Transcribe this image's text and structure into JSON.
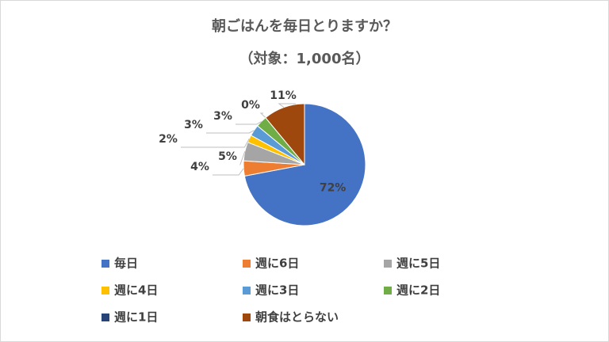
{
  "chart_data": {
    "type": "pie",
    "title": "朝ごはんを毎日とりますか？",
    "subtitle": "（対象：1,000名）",
    "categories": [
      "毎日",
      "週に6日",
      "週に5日",
      "週に4日",
      "週に3日",
      "週に2日",
      "週に1日",
      "朝食はとらない"
    ],
    "values": [
      72,
      4,
      5,
      2,
      3,
      3,
      0,
      11
    ],
    "value_labels": [
      "72%",
      "4%",
      "5%",
      "2%",
      "3%",
      "3%",
      "0%",
      "11%"
    ],
    "colors": [
      "#4472c4",
      "#ed7d31",
      "#a5a5a5",
      "#ffc000",
      "#5b9bd5",
      "#70ad47",
      "#264478",
      "#9e480e"
    ]
  }
}
